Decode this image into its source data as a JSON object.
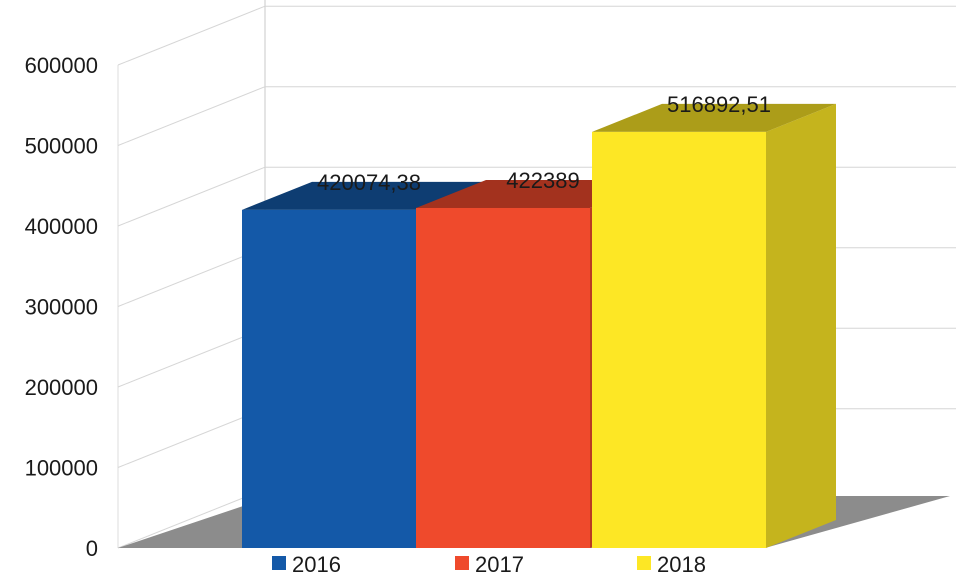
{
  "chart_data": {
    "type": "bar",
    "style": "3d",
    "categories": [
      "2016",
      "2017",
      "2018"
    ],
    "series": [
      {
        "values": [
          420074.38,
          422389,
          516892.51
        ]
      }
    ],
    "value_labels": [
      "420074,38",
      "422389",
      "516892,51"
    ],
    "colors": [
      "#1459a8",
      "#ef4a2c",
      "#fde725"
    ],
    "y_ticks": [
      "0",
      "100000",
      "200000",
      "300000",
      "400000",
      "500000",
      "600000"
    ],
    "ylim": [
      0,
      600000
    ],
    "grid": true,
    "legend": {
      "position": "bottom",
      "entries": [
        "2016",
        "2017",
        "2018"
      ]
    }
  }
}
